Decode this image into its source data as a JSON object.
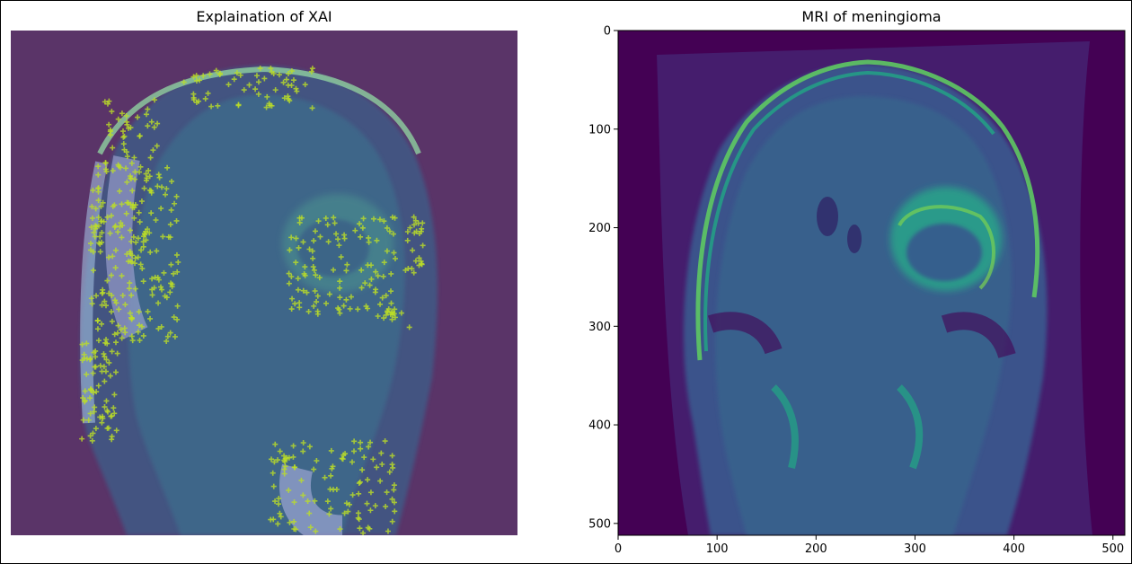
{
  "chart_data": [
    {
      "type": "heatmap",
      "title": "Explaination of XAI",
      "axes_visible": false,
      "content": "coronal brain MRI (viridis) overlaid with translucent purple mask and yellow-green plus-sign explanation markers",
      "colormap": "viridis"
    },
    {
      "type": "heatmap",
      "title": "MRI of meningioma",
      "colormap": "viridis",
      "x": {
        "ticks": [
          0,
          100,
          200,
          300,
          400,
          500
        ],
        "lim": [
          0,
          512
        ]
      },
      "y": {
        "ticks": [
          0,
          100,
          200,
          300,
          400,
          500
        ],
        "lim": [
          512,
          0
        ],
        "inverted": true
      },
      "image_size": [
        512,
        512
      ]
    }
  ],
  "colors": {
    "overlay_purple": "#5a3468",
    "viridis_dark": "#440154",
    "viridis_mid": "#2a788e",
    "viridis_teal": "#22a884",
    "viridis_bright": "#7ad151",
    "marker_yellow": "#bddf26"
  }
}
